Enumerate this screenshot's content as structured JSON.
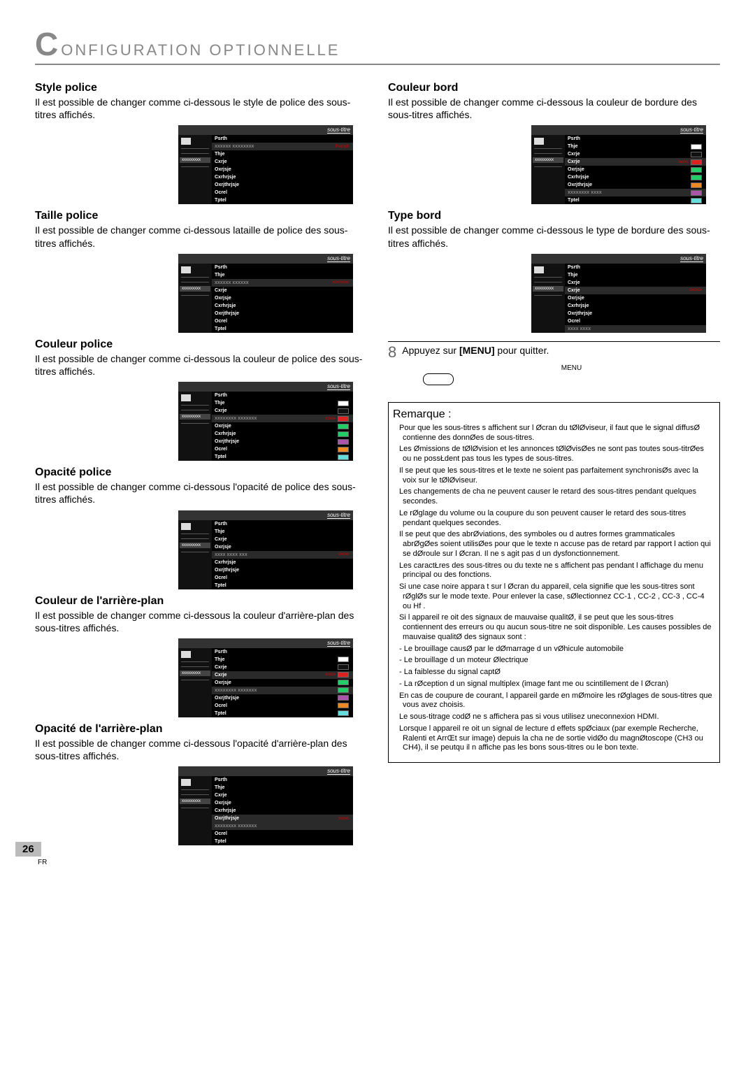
{
  "header": {
    "big": "C",
    "rest": "ONFIGURATION  OPTIONNELLE"
  },
  "left": {
    "s1": {
      "head": "Style police",
      "desc": "Il est possible de changer comme ci-dessous le style de police des sous-titres affichés."
    },
    "s2": {
      "head": "Taille police",
      "desc": "Il est possible de changer comme ci-dessous lataille de police des sous-titres affichés."
    },
    "s3": {
      "head": "Couleur police",
      "desc": "Il est possible de changer comme ci-dessous la couleur de police des sous-titres affichés."
    },
    "s4": {
      "head": "Opacité police",
      "desc": "Il est possible de changer comme ci-dessous l'opacité de police des sous-titres affichés."
    },
    "s5": {
      "head": "Couleur de l'arrière-plan",
      "desc": "Il est possible de changer comme ci-dessous la couleur d'arrière-plan des sous-titres affichés."
    },
    "s6": {
      "head": "Opacité de l'arrière-plan",
      "desc": "Il est possible de changer comme ci-dessous l'opacité d'arrière-plan des sous-titres affichés."
    }
  },
  "right": {
    "s1": {
      "head": "Couleur bord",
      "desc": "Il est possible de changer comme ci-dessous la couleur de bordure des sous-titres affichés."
    },
    "s2": {
      "head": "Type bord",
      "desc": "Il est possible de changer comme ci-dessous le type de bordure des sous-titres affichés."
    }
  },
  "mock": {
    "toplabel": "sous-titre",
    "side_sel": "xxxxxxxxx",
    "labels": {
      "style": "Psrth",
      "style_sel": "xxxxxx xxxxxxxx",
      "taille": "Thje",
      "taille_sel": "xxxxxx xxxxxx",
      "couleur": "Cxrje",
      "couleur_sel": "xxxxxxxx xxxxxxx",
      "opacite": "Oxrjsje",
      "opacite_sel": "xxxx xxxx xxx",
      "cbrhrje": "Cxrhrjsje",
      "oxthrje": "Oxrjthrjsje",
      "ocrel": "Ocrel",
      "tptel": "Tptel",
      "couleur_bord_sel": "xxxxxxxx xxxx",
      "type_bord_sel": "xxxx xxxx"
    },
    "vals": {
      "police0": "Police0",
      "xxxxxxxx": "xxxxxxxx",
      "xxxxx": "xxxxx",
      "xxxxxx": "xxxxxx"
    },
    "colors": {
      "white": "#ffffff",
      "red": "#d22",
      "green": "#2c6",
      "purple": "#a5a",
      "orange": "#e82",
      "cyan": "#6dd",
      "black": "#111"
    }
  },
  "step8": {
    "num": "8",
    "pre": "Appuyez sur ",
    "bold": "[MENU]",
    "post": " pour quitter.",
    "menu": "MENU"
  },
  "remark": {
    "title": "Remarque :",
    "lines": [
      "Pour que les sous-titres s affichent sur l Øcran du tØlØviseur, il faut que le signal diffusØ contienne des donnØes de sous-titres.",
      "Les Ømissions de tØlØvision et les annonces tØlØvisØes ne sont pas toutes sous-titrØes ou ne possŁdent pas tous les types de sous-titres.",
      "Il se peut que les sous-titres et le texte ne soient pas parfaitement synchronisØs avec la voix sur le tØlØviseur.",
      "Les changements de cha ne peuvent causer le retard des sous-titres pendant quelques secondes.",
      "Le rØglage du volume ou la coupure du son peuvent causer le retard des sous-titres pendant quelques secondes.",
      "Il se peut que des abrØviations, des symboles ou d autres formes grammaticales abrØgØes soient utilisØes pour que le texte n accuse pas de retard par rapport   l action qui se dØroule sur l Øcran. Il ne s agit pas d un dysfonctionnement.",
      "Les caractŁres des sous-titres ou du texte ne s affichent pas pendant l affichage du menu principal ou des fonctions.",
      "Si une case noire appara t sur l Øcran du appareil, cela signifie que les sous-titres sont rØglØs sur le mode texte. Pour enlever la case, sØlectionnez  CC-1 ,  CC-2 ,  CC-3 ,  CC-4  ou  Hf .",
      "Si l appareil re oit des signaux de mauvaise qualitØ, il se peut que les sous-titres contiennent des erreurs ou qu aucun sous-titre ne soit disponible. Les causes possibles de mauvaise qualitØ des signaux sont :",
      "- Le brouillage causØ par le dØmarrage d un vØhicule automobile",
      "- Le brouillage d un moteur Ølectrique",
      "- La faiblesse du signal captØ",
      "-  La rØception d un signal multiplex (image fant me ou scintillement de l Øcran)",
      "En cas de coupure de courant, l appareil garde en mØmoire les rØglages de sous-titres que vous avez choisis.",
      "Le sous-titrage codØ ne s affichera pas si vous utilisez uneconnexion HDMI.",
      "Lorsque l appareil re oit un signal de lecture d effets spØciaux (par exemple Recherche, Ralenti et ArrŒt sur image) depuis la cha ne de sortie vidØo du magnØtoscope (CH3 ou CH4), il se peutqu il n affiche pas les bons sous-titres ou le bon texte."
    ]
  },
  "pageNum": "26",
  "pageLang": "FR"
}
